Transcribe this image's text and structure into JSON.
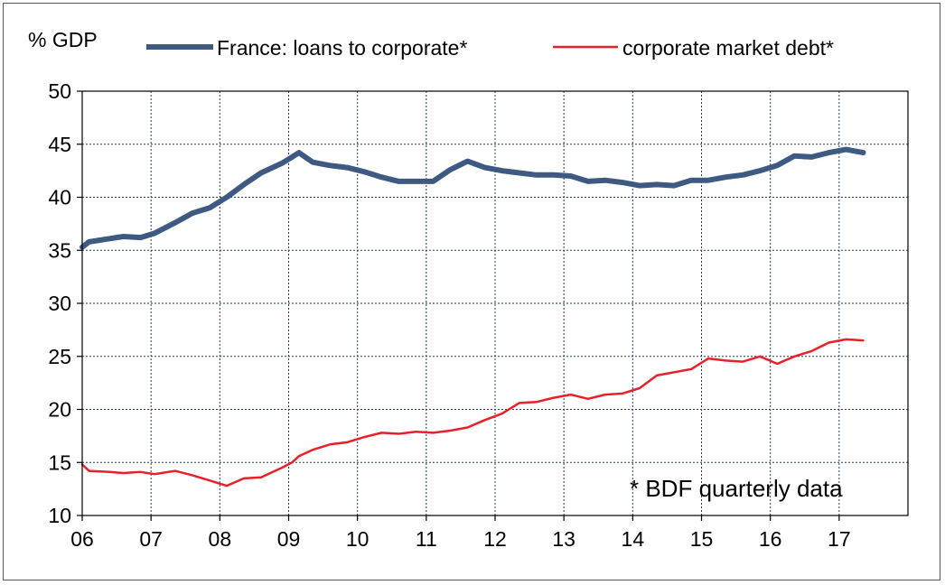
{
  "chart_data": {
    "type": "line",
    "ylabel": "% GDP",
    "xlabel": "",
    "ylim": [
      10,
      50
    ],
    "yticks": [
      "10",
      "15",
      "20",
      "25",
      "30",
      "35",
      "40",
      "45",
      "50"
    ],
    "xlim": [
      2006,
      2018
    ],
    "xticks": [
      {
        "value": 2006,
        "label": "06"
      },
      {
        "value": 2007,
        "label": "07"
      },
      {
        "value": 2008,
        "label": "08"
      },
      {
        "value": 2009,
        "label": "09"
      },
      {
        "value": 2010,
        "label": "10"
      },
      {
        "value": 2011,
        "label": "11"
      },
      {
        "value": 2012,
        "label": "12"
      },
      {
        "value": 2013,
        "label": "13"
      },
      {
        "value": 2014,
        "label": "14"
      },
      {
        "value": 2015,
        "label": "15"
      },
      {
        "value": 2016,
        "label": "16"
      },
      {
        "value": 2017,
        "label": "17"
      }
    ],
    "grid": true,
    "legend_position": "top",
    "annotation": "* BDF quarterly data",
    "x": [
      2006.0,
      2006.1,
      2006.4,
      2006.6,
      2006.85,
      2007.05,
      2007.35,
      2007.6,
      2007.85,
      2008.1,
      2008.35,
      2008.6,
      2008.9,
      2009.05,
      2009.15,
      2009.35,
      2009.6,
      2009.85,
      2010.1,
      2010.35,
      2010.6,
      2010.85,
      2011.1,
      2011.35,
      2011.6,
      2011.85,
      2012.1,
      2012.35,
      2012.6,
      2012.85,
      2013.1,
      2013.35,
      2013.6,
      2013.85,
      2014.1,
      2014.35,
      2014.6,
      2014.85,
      2015.1,
      2015.35,
      2015.6,
      2015.85,
      2016.1,
      2016.35,
      2016.6,
      2016.85,
      2017.1,
      2017.35
    ],
    "series": [
      {
        "name": "France: loans to corporate*",
        "color": "#3f5a82",
        "values": [
          35.3,
          35.8,
          36.1,
          36.3,
          36.2,
          36.6,
          37.6,
          38.5,
          39.0,
          40.0,
          41.2,
          42.3,
          43.2,
          43.8,
          44.2,
          43.3,
          43.0,
          42.8,
          42.4,
          41.9,
          41.5,
          41.5,
          41.5,
          42.6,
          43.4,
          42.8,
          42.5,
          42.3,
          42.1,
          42.1,
          42.0,
          41.5,
          41.6,
          41.4,
          41.1,
          41.2,
          41.1,
          41.6,
          41.6,
          41.9,
          42.1,
          42.5,
          43.0,
          43.9,
          43.8,
          44.2,
          44.5,
          44.2
        ]
      },
      {
        "name": "corporate market debt*",
        "color": "#e8202a",
        "values": [
          14.8,
          14.2,
          14.1,
          14.0,
          14.1,
          13.9,
          14.2,
          13.8,
          13.3,
          12.8,
          13.5,
          13.6,
          14.5,
          15.0,
          15.6,
          16.2,
          16.7,
          16.9,
          17.4,
          17.8,
          17.7,
          17.9,
          17.8,
          18.0,
          18.3,
          19.0,
          19.6,
          20.6,
          20.7,
          21.1,
          21.4,
          21.0,
          21.4,
          21.5,
          22.0,
          23.2,
          23.5,
          23.8,
          24.8,
          24.6,
          24.5,
          25.0,
          24.3,
          25.0,
          25.5,
          26.3,
          26.6,
          26.5
        ]
      }
    ]
  }
}
